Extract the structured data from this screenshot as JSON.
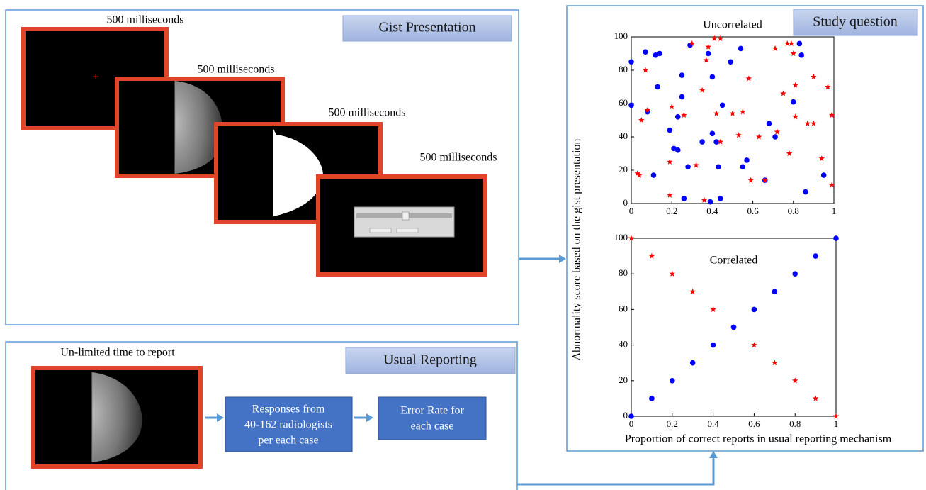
{
  "gist": {
    "title": "Gist Presentation",
    "frame_labels": [
      "500 milliseconds",
      "500 milliseconds",
      "500 milliseconds",
      "500 milliseconds"
    ]
  },
  "usual": {
    "title": "Usual Reporting",
    "frame_label": "Un-limited time to report",
    "responses": [
      "Responses from",
      "40-162 radiologists",
      "per each case"
    ],
    "error": [
      "Error Rate for",
      "each case"
    ]
  },
  "study": {
    "title": "Study question"
  },
  "chart_data": [
    {
      "type": "scatter",
      "title": "Uncorrelated",
      "y_label": "Abnormality score based on the gist presentation",
      "xlim": [
        0,
        1
      ],
      "ylim": [
        0,
        100
      ],
      "xticks": [
        0,
        0.2,
        0.4,
        0.6,
        0.8,
        1
      ],
      "yticks": [
        0,
        20,
        40,
        60,
        80,
        100
      ],
      "series": [
        {
          "color": "#0000ff",
          "marker": "circle",
          "x": [
            0,
            0,
            0.07,
            0.08,
            0.11,
            0.12,
            0.14,
            0.13,
            0.19,
            0.21,
            0.23,
            0.23,
            0.25,
            0.25,
            0.26,
            0.28,
            0.29,
            0.35,
            0.38,
            0.39,
            0.4,
            0.4,
            0.42,
            0.43,
            0.44,
            0.45,
            0.49,
            0.54,
            0.55,
            0.57,
            0.66,
            0.68,
            0.71,
            0.8,
            0.83,
            0.84,
            0.86,
            0.95
          ],
          "values": [
            85,
            59,
            91,
            55,
            17,
            89,
            90,
            70,
            44,
            33,
            32,
            52,
            77,
            64,
            3,
            22,
            95,
            37,
            90,
            1,
            42,
            76,
            37,
            22,
            3,
            59,
            85,
            93,
            22,
            26,
            14,
            48,
            40,
            61,
            96,
            89,
            7,
            17
          ]
        },
        {
          "color": "#ff0000",
          "marker": "star",
          "x": [
            0.03,
            0.04,
            0.05,
            0.07,
            0.08,
            0.19,
            0.19,
            0.2,
            0.26,
            0.3,
            0.32,
            0.35,
            0.36,
            0.37,
            0.38,
            0.41,
            0.42,
            0.44,
            0.44,
            0.5,
            0.53,
            0.55,
            0.58,
            0.59,
            0.63,
            0.66,
            0.71,
            0.72,
            0.75,
            0.77,
            0.78,
            0.79,
            0.8,
            0.81,
            0.81,
            0.87,
            0.9,
            0.9,
            0.94,
            0.97,
            0.99,
            0.99
          ],
          "values": [
            18,
            17,
            50,
            80,
            56,
            5,
            25,
            58,
            53,
            96,
            23,
            68,
            2,
            86,
            94,
            99,
            54,
            37,
            99,
            54,
            41,
            55,
            75,
            14,
            40,
            14,
            93,
            43,
            66,
            96,
            30,
            96,
            90,
            52,
            71,
            48,
            48,
            76,
            27,
            70,
            53,
            11
          ]
        }
      ]
    },
    {
      "type": "scatter",
      "title": "Correlated",
      "x_label": "Proportion of correct reports in usual reporting mechanism",
      "xlim": [
        0,
        1
      ],
      "ylim": [
        0,
        100
      ],
      "xticks": [
        0,
        0.2,
        0.4,
        0.6,
        0.8,
        1
      ],
      "yticks": [
        0,
        20,
        40,
        60,
        80,
        100
      ],
      "series": [
        {
          "color": "#ff0000",
          "marker": "star",
          "x": [
            0,
            0.1,
            0.2,
            0.3,
            0.4,
            0.5,
            0.6,
            0.7,
            0.8,
            0.9,
            1
          ],
          "values": [
            100,
            90,
            80,
            70,
            60,
            50,
            40,
            30,
            20,
            10,
            0
          ]
        },
        {
          "color": "#0000ff",
          "marker": "circle",
          "x": [
            0,
            0.1,
            0.2,
            0.3,
            0.4,
            0.5,
            0.6,
            0.7,
            0.8,
            0.9,
            1
          ],
          "values": [
            0,
            10,
            20,
            30,
            40,
            50,
            60,
            70,
            80,
            90,
            100
          ]
        }
      ]
    }
  ]
}
